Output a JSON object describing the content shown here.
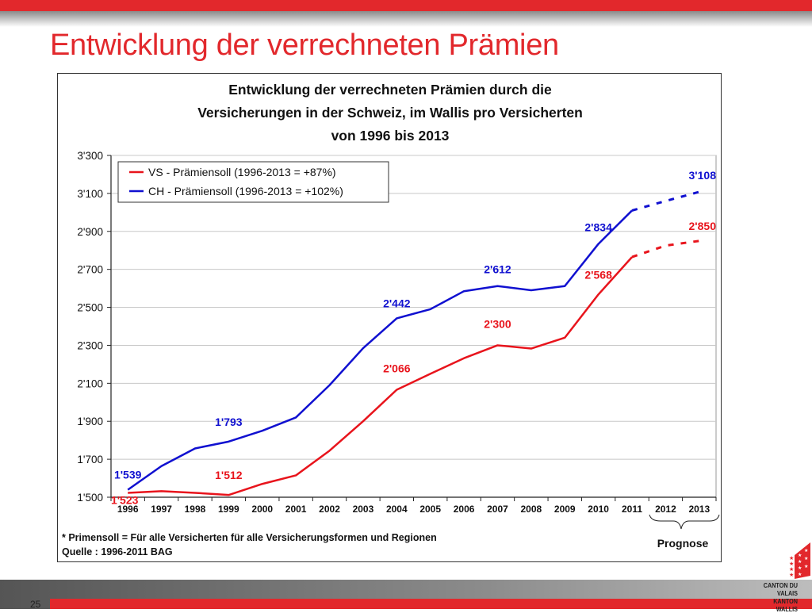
{
  "slide": {
    "title": "Entwicklung der verrechneten Prämien",
    "page_number": "25",
    "logo": {
      "icon": "canton-valais-flag-icon",
      "line1": "CANTON DU VALAIS",
      "line2": "KANTON WALLIS"
    },
    "colors": {
      "brand_red": "#e2282c"
    }
  },
  "chart_data": {
    "type": "line",
    "title_lines": [
      "Entwicklung der verrechneten Prämien durch die",
      "Versicherungen in der Schweiz, im Wallis pro Versicherten",
      "von 1996 bis 2013"
    ],
    "xlabel": "",
    "ylabel": "",
    "x": [
      "1996",
      "1997",
      "1998",
      "1999",
      "2000",
      "2001",
      "2002",
      "2003",
      "2004",
      "2005",
      "2006",
      "2007",
      "2008",
      "2009",
      "2010",
      "2011",
      "2012",
      "2013"
    ],
    "ylim": [
      1500,
      3300
    ],
    "yticks": [
      1500,
      1700,
      1900,
      2100,
      2300,
      2500,
      2700,
      2900,
      3100,
      3300
    ],
    "ytick_labels": [
      "1'500",
      "1'700",
      "1'900",
      "2'100",
      "2'300",
      "2'500",
      "2'700",
      "2'900",
      "3'100",
      "3'300"
    ],
    "grid": "horizontal",
    "legend_position": "top-left",
    "forecast_from": "2011",
    "forecast_label": "Prognose",
    "forecast_years": [
      "2012",
      "2013"
    ],
    "series": [
      {
        "name": "VS - Prämiensoll (1996-2013 = +87%)",
        "color": "#e8141c",
        "values": [
          1523,
          1532,
          1523,
          1512,
          1570,
          1615,
          1745,
          1900,
          2066,
          2150,
          2232,
          2300,
          2283,
          2340,
          2568,
          2765,
          2825,
          2850
        ],
        "labels": [
          {
            "year": "1996",
            "text": "1'523"
          },
          {
            "year": "1999",
            "text": "1'512"
          },
          {
            "year": "2004",
            "text": "2'066"
          },
          {
            "year": "2007",
            "text": "2'300"
          },
          {
            "year": "2010",
            "text": "2'568"
          },
          {
            "year": "2013",
            "text": "2'850"
          }
        ]
      },
      {
        "name": "CH - Prämiensoll (1996-2013 = +102%)",
        "color": "#1010d0",
        "values": [
          1539,
          1664,
          1757,
          1793,
          1850,
          1920,
          2090,
          2285,
          2442,
          2490,
          2585,
          2612,
          2590,
          2612,
          2834,
          3010,
          3060,
          3108
        ],
        "labels": [
          {
            "year": "1996",
            "text": "1'539"
          },
          {
            "year": "1999",
            "text": "1'793"
          },
          {
            "year": "2004",
            "text": "2'442"
          },
          {
            "year": "2007",
            "text": "2'612"
          },
          {
            "year": "2010",
            "text": "2'834"
          },
          {
            "year": "2013",
            "text": "3'108"
          }
        ]
      }
    ],
    "footnotes": [
      "* Primensoll = Für alle Versicherten für alle Versicherungsformen und Regionen",
      "Quelle : 1996-2011 BAG"
    ]
  }
}
